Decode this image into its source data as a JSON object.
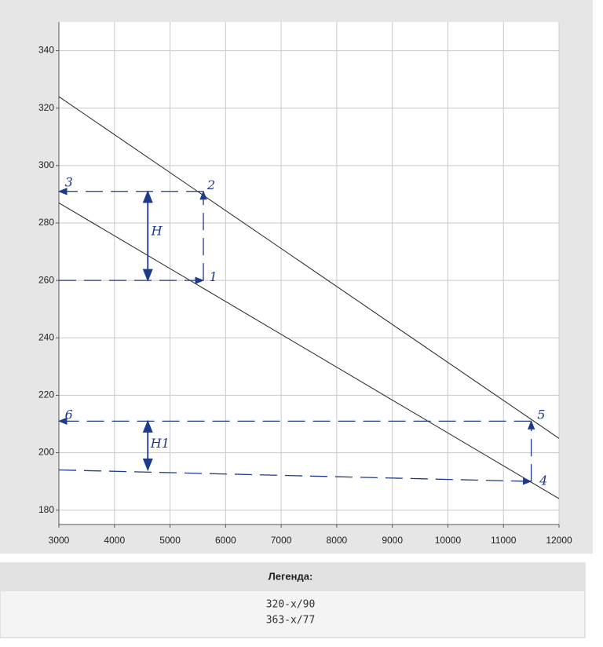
{
  "chart_data": {
    "type": "line",
    "xlim": [
      3000,
      12000
    ],
    "xticks": [
      3000,
      4000,
      5000,
      6000,
      7000,
      8000,
      9000,
      10000,
      11000,
      12000
    ],
    "ylim": [
      175,
      350
    ],
    "yticks": [
      180,
      200,
      220,
      240,
      260,
      280,
      300,
      320,
      340
    ],
    "grid": true,
    "series": [
      {
        "name": "320-x/90",
        "color": "#222222",
        "x": [
          3000,
          12000
        ],
        "values": [
          287,
          184
        ]
      },
      {
        "name": "363-x/77",
        "color": "#222222",
        "x": [
          3000,
          12000
        ],
        "values": [
          324,
          205
        ]
      }
    ],
    "legend_title": "Легенда:",
    "guide_color": "#1d3a8c",
    "guides": [
      {
        "x": [
          5600,
          3000
        ],
        "y": [
          291,
          291
        ],
        "style": "dashed",
        "arrow": "end"
      },
      {
        "x": [
          3000,
          5600
        ],
        "y": [
          260,
          260
        ],
        "style": "dashed",
        "arrow": "end"
      },
      {
        "x": [
          5600,
          5600
        ],
        "y": [
          260,
          291
        ],
        "style": "dashed",
        "arrow": "end"
      },
      {
        "x": [
          4600,
          4600
        ],
        "y": [
          260,
          291
        ],
        "style": "solid",
        "arrow": "both"
      },
      {
        "x": [
          11500,
          3000
        ],
        "y": [
          211,
          211
        ],
        "style": "dashed",
        "arrow": "end"
      },
      {
        "x": [
          3000,
          11500
        ],
        "y": [
          194,
          190
        ],
        "style": "dashed",
        "arrow": "end"
      },
      {
        "x": [
          11500,
          11500
        ],
        "y": [
          190,
          211
        ],
        "style": "dashed",
        "arrow": "end"
      },
      {
        "x": [
          4600,
          4600
        ],
        "y": [
          194,
          211
        ],
        "style": "solid",
        "arrow": "both"
      }
    ],
    "annotations": [
      {
        "text": "1",
        "x": 5780,
        "y": 261
      },
      {
        "text": "2",
        "x": 5740,
        "y": 293
      },
      {
        "text": "3",
        "x": 3180,
        "y": 294
      },
      {
        "text": "4",
        "x": 11720,
        "y": 190
      },
      {
        "text": "5",
        "x": 11680,
        "y": 213
      },
      {
        "text": "6",
        "x": 3180,
        "y": 213
      },
      {
        "text": "H",
        "x": 4760,
        "y": 277
      },
      {
        "text": "H1",
        "x": 4820,
        "y": 203
      }
    ]
  }
}
